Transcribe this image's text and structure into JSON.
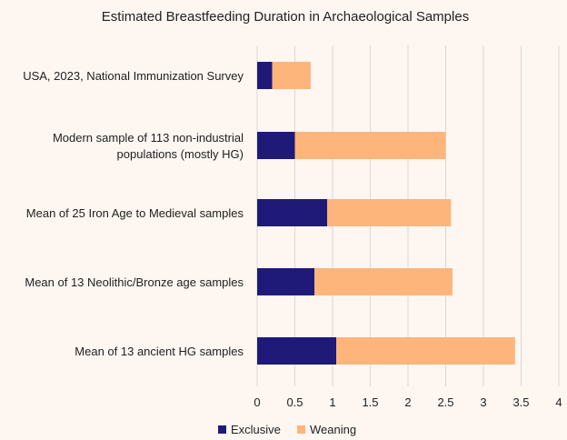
{
  "chart_data": {
    "type": "bar",
    "orientation": "horizontal",
    "stacked": true,
    "title": "Estimated Breastfeeding Duration in Archaeological Samples",
    "categories": [
      [
        "USA, 2023, National Immunization Survey"
      ],
      [
        "Modern sample of 113 non-industrial",
        "populations (mostly HG)"
      ],
      [
        "Mean of 25 Iron Age to Medieval samples"
      ],
      [
        "Mean of 13 Neolithic/Bronze age samples"
      ],
      [
        "Mean of 13 ancient HG samples"
      ]
    ],
    "series": [
      {
        "name": "Exclusive",
        "color": "#1f1a78",
        "values": [
          0.2,
          0.5,
          0.93,
          0.76,
          1.05
        ]
      },
      {
        "name": "Weaning",
        "color": "#fdb57c",
        "values": [
          0.51,
          2.0,
          1.64,
          1.83,
          2.37
        ]
      }
    ],
    "xlim": [
      0,
      4
    ],
    "xticks": [
      "0",
      "0.5",
      "1",
      "1.5",
      "2",
      "2.5",
      "3",
      "3.5",
      "4"
    ],
    "grid": true,
    "legend_position": "bottom"
  }
}
